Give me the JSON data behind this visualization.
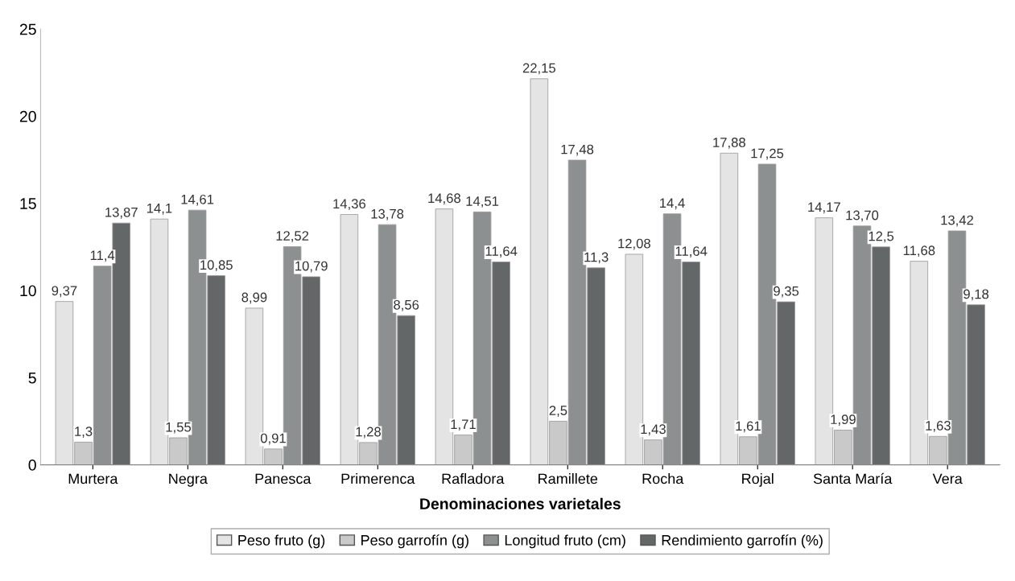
{
  "chart_data": {
    "type": "bar",
    "xlabel": "Denominaciones varietales",
    "categories": [
      "Murtera",
      "Negra",
      "Panesca",
      "Primerenca",
      "Rafladora",
      "Ramillete",
      "Rocha",
      "Rojal",
      "Santa María",
      "Vera"
    ],
    "series": [
      {
        "name": "Peso fruto (g)",
        "color": "#e4e4e4",
        "values": [
          9.37,
          14.1,
          8.99,
          14.36,
          14.68,
          22.15,
          12.08,
          17.88,
          14.17,
          11.68
        ],
        "value_labels": [
          "9,37",
          "14,1",
          "8,99",
          "14,36",
          "14,68",
          "22,15",
          "12,08",
          "17,88",
          "14,17",
          "11,68"
        ]
      },
      {
        "name": "Peso garrofín (g)",
        "color": "#c9c9c9",
        "values": [
          1.3,
          1.55,
          0.91,
          1.28,
          1.71,
          2.5,
          1.43,
          1.61,
          1.99,
          1.63
        ],
        "value_labels": [
          "1,3",
          "1,55",
          "0,91",
          "1,28",
          "1,71",
          "2,5",
          "1,43",
          "1,61",
          "1,99",
          "1,63"
        ]
      },
      {
        "name": "Longitud fruto (cm)",
        "color": "#8c9090",
        "values": [
          11.4,
          14.61,
          12.52,
          13.78,
          14.51,
          17.48,
          14.4,
          17.25,
          13.7,
          13.42
        ],
        "value_labels": [
          "11,4",
          "14,61",
          "12,52",
          "13,78",
          "14,51",
          "17,48",
          "14,4",
          "17,25",
          "13,70",
          "13,42"
        ]
      },
      {
        "name": "Rendimiento garrofín (%)",
        "color": "#636767",
        "values": [
          13.87,
          10.85,
          10.79,
          8.56,
          11.64,
          11.3,
          11.64,
          9.35,
          12.5,
          9.18
        ],
        "value_labels": [
          "13,87",
          "10,85",
          "10,79",
          "8,56",
          "11,64",
          "11,3",
          "11,64",
          "9,35",
          "12,5",
          "9,18"
        ]
      }
    ],
    "ylim": [
      0,
      25
    ],
    "yticks": [
      0,
      5,
      10,
      15,
      20,
      25
    ],
    "grid": false,
    "legend": "bottom"
  }
}
